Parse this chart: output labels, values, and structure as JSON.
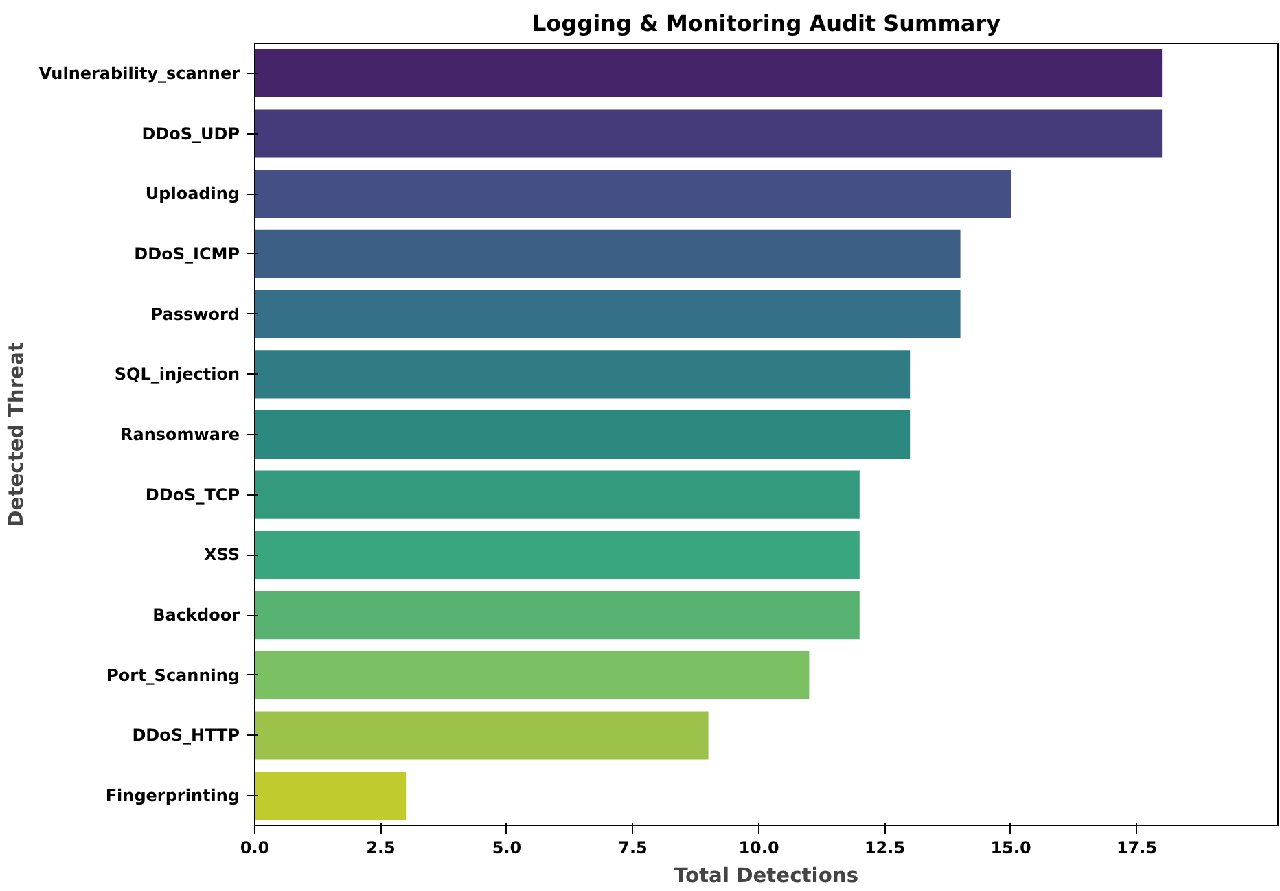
{
  "chart_data": {
    "type": "bar",
    "orientation": "horizontal",
    "title": "Logging & Monitoring Audit Summary",
    "xlabel": "Total Detections",
    "ylabel": "Detected Threat",
    "categories": [
      "Vulnerability_scanner",
      "DDoS_UDP",
      "Uploading",
      "DDoS_ICMP",
      "Password",
      "SQL_injection",
      "Ransomware",
      "DDoS_TCP",
      "XSS",
      "Backdoor",
      "Port_Scanning",
      "DDoS_HTTP",
      "Fingerprinting"
    ],
    "values": [
      18,
      18,
      15,
      14,
      14,
      13,
      13,
      12,
      12,
      12,
      11,
      9,
      3
    ],
    "colors": [
      "#46246a",
      "#453a7a",
      "#434f85",
      "#3d5f85",
      "#357088",
      "#2f7c85",
      "#2c897f",
      "#339a7e",
      "#3aa67e",
      "#58b373",
      "#7cc064",
      "#9cc24c",
      "#c0cb2e"
    ],
    "xlim": [
      0,
      20.3
    ],
    "xticks": [
      {
        "value": 0,
        "label": "0.0"
      },
      2.5,
      {
        "value": 5,
        "label": "5.0"
      },
      7.5,
      {
        "value": 10,
        "label": "10.0"
      },
      12.5,
      {
        "value": 15,
        "label": "15.0"
      },
      17.5
    ],
    "grid": false
  }
}
